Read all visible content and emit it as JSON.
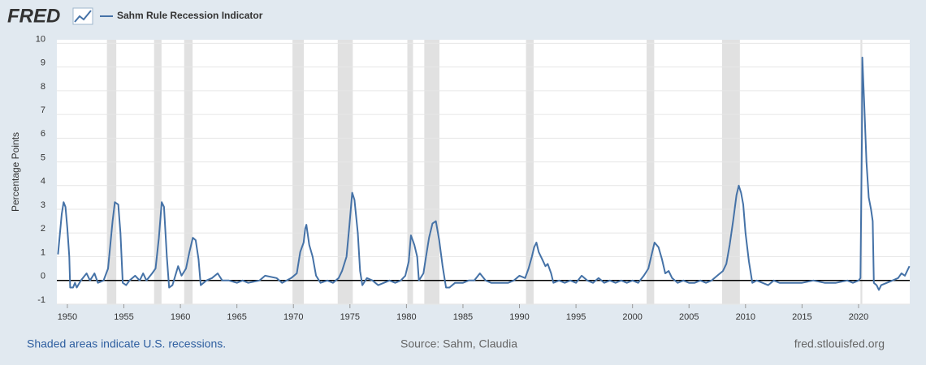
{
  "logo": "FRED",
  "footer": {
    "note": "Shaded areas indicate U.S. recessions.",
    "source": "Source: Sahm, Claudia",
    "url": "fred.stlouisfed.org"
  },
  "chart_data": {
    "type": "line",
    "y_label": "Percentage Points",
    "x": [
      1949.17,
      1949.5,
      1949.67,
      1949.83,
      1950.0,
      1950.17,
      1950.25,
      1950.5,
      1950.67,
      1950.83,
      1951.2,
      1951.7,
      1952.0,
      1952.4,
      1952.7,
      1953.2,
      1953.6,
      1954.0,
      1954.2,
      1954.5,
      1954.7,
      1954.9,
      1955.2,
      1955.5,
      1956.0,
      1956.4,
      1956.7,
      1957.0,
      1957.5,
      1957.8,
      1958.1,
      1958.35,
      1958.55,
      1958.8,
      1959.0,
      1959.3,
      1959.8,
      1960.1,
      1960.5,
      1960.8,
      1961.1,
      1961.35,
      1961.6,
      1961.8,
      1962.3,
      1962.8,
      1963.3,
      1963.7,
      1964.3,
      1965.0,
      1965.5,
      1966.0,
      1967.0,
      1967.5,
      1968.5,
      1969.0,
      1969.8,
      1970.3,
      1970.6,
      1970.9,
      1971.05,
      1971.15,
      1971.4,
      1971.7,
      1972.0,
      1972.4,
      1973.0,
      1973.5,
      1974.0,
      1974.3,
      1974.7,
      1974.95,
      1975.2,
      1975.4,
      1975.7,
      1975.9,
      1976.1,
      1976.5,
      1977.0,
      1977.5,
      1978.0,
      1978.5,
      1979.0,
      1979.5,
      1979.9,
      1980.2,
      1980.4,
      1980.7,
      1980.95,
      1981.1,
      1981.5,
      1981.7,
      1982.0,
      1982.3,
      1982.6,
      1982.9,
      1983.2,
      1983.5,
      1983.8,
      1984.3,
      1985.0,
      1985.5,
      1986.0,
      1986.5,
      1987.0,
      1987.5,
      1988.0,
      1989.0,
      1989.5,
      1990.0,
      1990.5,
      1990.8,
      1991.1,
      1991.3,
      1991.5,
      1991.7,
      1992.0,
      1992.3,
      1992.5,
      1992.8,
      1993.0,
      1993.5,
      1994.0,
      1994.5,
      1995.0,
      1995.5,
      1996.0,
      1996.5,
      1997.0,
      1997.5,
      1998.0,
      1998.5,
      1999.0,
      1999.5,
      2000.0,
      2000.5,
      2001.0,
      2001.4,
      2001.7,
      2001.95,
      2002.3,
      2002.6,
      2002.9,
      2003.2,
      2003.5,
      2004.0,
      2004.5,
      2005.0,
      2005.5,
      2006.0,
      2006.5,
      2007.0,
      2007.5,
      2008.0,
      2008.3,
      2008.6,
      2008.9,
      2009.2,
      2009.4,
      2009.6,
      2009.8,
      2010.0,
      2010.3,
      2010.6,
      2011.0,
      2011.5,
      2012.0,
      2012.5,
      2013.0,
      2014.0,
      2015.0,
      2016.0,
      2017.0,
      2018.0,
      2019.0,
      2019.5,
      2020.0,
      2020.17,
      2020.3,
      2020.33,
      2020.5,
      2020.7,
      2020.9,
      2021.1,
      2021.25,
      2021.35,
      2021.6,
      2021.8,
      2022.0,
      2022.5,
      2023.0,
      2023.5,
      2023.8,
      2024.1,
      2024.5
    ],
    "series": [
      {
        "name": "Sahm Rule Recession Indicator",
        "color": "#4572a7",
        "values": [
          1.1,
          2.8,
          3.3,
          3.1,
          2.2,
          1.0,
          -0.3,
          -0.3,
          -0.1,
          -0.3,
          0.0,
          0.3,
          0.0,
          0.3,
          -0.1,
          0.0,
          0.5,
          2.5,
          3.3,
          3.2,
          2.0,
          -0.1,
          -0.2,
          0.0,
          0.2,
          0.0,
          0.3,
          0.0,
          0.3,
          0.5,
          1.8,
          3.3,
          3.1,
          1.0,
          -0.3,
          -0.2,
          0.6,
          0.2,
          0.5,
          1.2,
          1.8,
          1.7,
          0.9,
          -0.2,
          0.0,
          0.1,
          0.3,
          0.0,
          0.0,
          -0.1,
          0.0,
          -0.1,
          0.0,
          0.2,
          0.1,
          -0.1,
          0.1,
          0.3,
          1.2,
          1.6,
          2.2,
          2.35,
          1.5,
          1.0,
          0.2,
          -0.1,
          0.0,
          -0.1,
          0.1,
          0.4,
          1.0,
          2.3,
          3.7,
          3.4,
          2.0,
          0.4,
          -0.2,
          0.1,
          0.0,
          -0.2,
          -0.1,
          0.0,
          -0.1,
          0.0,
          0.2,
          0.8,
          1.9,
          1.5,
          1.0,
          0.0,
          0.3,
          0.9,
          1.8,
          2.4,
          2.5,
          1.7,
          0.6,
          -0.3,
          -0.3,
          -0.1,
          -0.1,
          0.0,
          0.0,
          0.3,
          0.0,
          -0.1,
          -0.1,
          -0.1,
          0.0,
          0.2,
          0.1,
          0.5,
          1.0,
          1.4,
          1.6,
          1.2,
          0.9,
          0.6,
          0.7,
          0.3,
          -0.1,
          0.0,
          -0.1,
          0.0,
          -0.1,
          0.2,
          0.0,
          -0.1,
          0.1,
          -0.1,
          0.0,
          -0.1,
          0.0,
          -0.1,
          0.0,
          -0.1,
          0.2,
          0.5,
          1.1,
          1.6,
          1.4,
          0.9,
          0.3,
          0.4,
          0.1,
          -0.1,
          0.0,
          -0.1,
          -0.1,
          0.0,
          -0.1,
          0.0,
          0.2,
          0.4,
          0.7,
          1.5,
          2.5,
          3.6,
          4.0,
          3.7,
          3.2,
          2.0,
          0.8,
          -0.1,
          0.0,
          -0.1,
          -0.2,
          0.0,
          -0.1,
          -0.1,
          -0.1,
          0.0,
          -0.1,
          -0.1,
          0.0,
          -0.1,
          0.0,
          0.1,
          6.0,
          9.4,
          7.5,
          5.0,
          3.5,
          3.0,
          2.5,
          -0.1,
          -0.2,
          -0.4,
          -0.2,
          -0.1,
          0.0,
          0.1,
          0.3,
          0.2,
          0.6
        ]
      }
    ],
    "recessions": [
      [
        1953.5,
        1954.33
      ],
      [
        1957.67,
        1958.33
      ],
      [
        1960.33,
        1961.08
      ],
      [
        1969.92,
        1970.92
      ],
      [
        1973.92,
        1975.25
      ],
      [
        1980.08,
        1980.58
      ],
      [
        1981.58,
        1982.92
      ],
      [
        1990.58,
        1991.25
      ],
      [
        2001.25,
        2001.92
      ],
      [
        2007.92,
        2009.5
      ],
      [
        2020.17,
        2020.33
      ]
    ],
    "recession_color": "#e1e1e1",
    "xlim": [
      1949.07,
      2024.53
    ],
    "xticks": [
      1950,
      1955,
      1960,
      1965,
      1970,
      1975,
      1980,
      1985,
      1990,
      1995,
      2000,
      2005,
      2010,
      2015,
      2020
    ],
    "ylim": [
      -1,
      10.15
    ],
    "yticks": [
      -1,
      0,
      1,
      2,
      3,
      4,
      5,
      6,
      7,
      8,
      9,
      10
    ],
    "grid": true
  }
}
